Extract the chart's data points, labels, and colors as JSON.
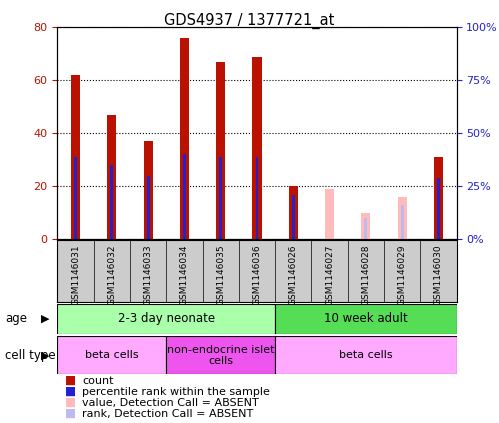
{
  "title": "GDS4937 / 1377721_at",
  "samples": [
    "GSM1146031",
    "GSM1146032",
    "GSM1146033",
    "GSM1146034",
    "GSM1146035",
    "GSM1146036",
    "GSM1146026",
    "GSM1146027",
    "GSM1146028",
    "GSM1146029",
    "GSM1146030"
  ],
  "count_values": [
    62,
    47,
    37,
    76,
    67,
    69,
    20,
    0,
    0,
    0,
    31
  ],
  "rank_values": [
    39,
    35,
    30,
    40,
    39,
    39,
    21,
    0,
    0,
    0,
    29
  ],
  "absent_count": [
    0,
    0,
    0,
    0,
    0,
    0,
    0,
    19,
    10,
    16,
    0
  ],
  "absent_rank": [
    0,
    0,
    0,
    0,
    0,
    0,
    0,
    0,
    10,
    16,
    0
  ],
  "count_color": "#BB1100",
  "rank_color": "#2222CC",
  "absent_count_color": "#FFBBBB",
  "absent_rank_color": "#BBBBEE",
  "ylim_left": [
    0,
    80
  ],
  "ylim_right": [
    0,
    100
  ],
  "yticks_left": [
    0,
    20,
    40,
    60,
    80
  ],
  "ytick_labels_left": [
    "0",
    "20",
    "40",
    "60",
    "80"
  ],
  "yticks_right": [
    0,
    25,
    50,
    75,
    100
  ],
  "ytick_labels_right": [
    "0%",
    "25%",
    "50%",
    "75%",
    "100%"
  ],
  "age_groups": [
    {
      "label": "2-3 day neonate",
      "start": 0,
      "end": 6,
      "color": "#AAFFAA"
    },
    {
      "label": "10 week adult",
      "start": 6,
      "end": 11,
      "color": "#55DD55"
    }
  ],
  "cell_type_groups": [
    {
      "label": "beta cells",
      "start": 0,
      "end": 3,
      "color": "#FFAAFF"
    },
    {
      "label": "non-endocrine islet\ncells",
      "start": 3,
      "end": 6,
      "color": "#EE55EE"
    },
    {
      "label": "beta cells",
      "start": 6,
      "end": 11,
      "color": "#FFAAFF"
    }
  ],
  "legend_items": [
    {
      "label": "count",
      "color": "#BB1100"
    },
    {
      "label": "percentile rank within the sample",
      "color": "#2222CC"
    },
    {
      "label": "value, Detection Call = ABSENT",
      "color": "#FFBBBB"
    },
    {
      "label": "rank, Detection Call = ABSENT",
      "color": "#BBBBEE"
    }
  ]
}
